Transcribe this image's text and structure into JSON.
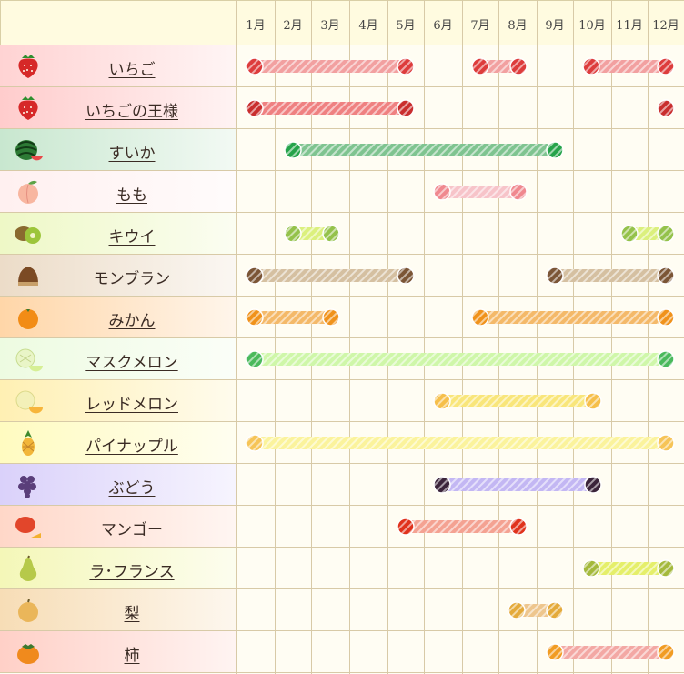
{
  "months": [
    "1月",
    "2月",
    "3月",
    "4月",
    "5月",
    "6月",
    "7月",
    "8月",
    "9月",
    "10月",
    "11月",
    "12月"
  ],
  "rows": [
    {
      "name": "いちご",
      "icon": "strawberry-icon",
      "bg": "#ffd3d3",
      "bar": "#f2a0a0",
      "dot": "#dd3c3c",
      "ranges": [
        [
          1,
          5
        ],
        [
          7,
          8
        ],
        [
          10,
          12
        ]
      ]
    },
    {
      "name": "いちごの王様",
      "icon": "strawberry-icon",
      "bg": "#ffcccc",
      "bar": "#ef8181",
      "dot": "#c92e2e",
      "ranges": [
        [
          1,
          5
        ],
        [
          12,
          12
        ]
      ]
    },
    {
      "name": "すいか",
      "icon": "watermelon-icon",
      "bg": "#c8e7cf",
      "bar": "#7fc490",
      "dot": "#25a34a",
      "ranges": [
        [
          2,
          9
        ]
      ]
    },
    {
      "name": "もも",
      "icon": "peach-icon",
      "bg": "#fff0f0",
      "bar": "#f7c4c9",
      "dot": "#f0888f",
      "ranges": [
        [
          6,
          8
        ]
      ]
    },
    {
      "name": "キウイ",
      "icon": "kiwi-icon",
      "bg": "#eef8c6",
      "bar": "#dbf07d",
      "dot": "#94c24a",
      "ranges": [
        [
          2,
          3
        ],
        [
          11,
          12
        ]
      ]
    },
    {
      "name": "モンブラン",
      "icon": "chestnut-icon",
      "bg": "#ecdcc8",
      "bar": "#d5c0a1",
      "dot": "#7b5536",
      "ranges": [
        [
          1,
          5
        ],
        [
          9,
          12
        ]
      ]
    },
    {
      "name": "みかん",
      "icon": "mandarin-icon",
      "bg": "#ffd6a8",
      "bar": "#f4b969",
      "dot": "#f0921b",
      "ranges": [
        [
          1,
          3
        ],
        [
          7,
          12
        ]
      ]
    },
    {
      "name": "マスクメロン",
      "icon": "muskmelon-icon",
      "bg": "#edfbe1",
      "bar": "#cff7a9",
      "dot": "#4ab95c",
      "ranges": [
        [
          1,
          12
        ]
      ]
    },
    {
      "name": "レッドメロン",
      "icon": "redmelon-icon",
      "bg": "#fff0b3",
      "bar": "#f9e67a",
      "dot": "#f6bf4a",
      "ranges": [
        [
          6,
          10
        ]
      ]
    },
    {
      "name": "パイナップル",
      "icon": "pineapple-icon",
      "bg": "#fffbc0",
      "bar": "#fbf39c",
      "dot": "#f6c457",
      "ranges": [
        [
          1,
          12
        ]
      ]
    },
    {
      "name": "ぶどう",
      "icon": "grape-icon",
      "bg": "#dad1fa",
      "bar": "#c3b7f3",
      "dot": "#3b243a",
      "ranges": [
        [
          6,
          10
        ]
      ]
    },
    {
      "name": "マンゴー",
      "icon": "mango-icon",
      "bg": "#ffd7c8",
      "bar": "#f4a292",
      "dot": "#e0321c",
      "ranges": [
        [
          5,
          8
        ]
      ]
    },
    {
      "name": "ラ･フランス",
      "icon": "pear-icon",
      "bg": "#f4f7b8",
      "bar": "#e5ef6a",
      "dot": "#a4b93c",
      "ranges": [
        [
          10,
          12
        ]
      ]
    },
    {
      "name": "梨",
      "icon": "asianpear-icon",
      "bg": "#f7ddb6",
      "bar": "#eec68d",
      "dot": "#e4aa3b",
      "ranges": [
        [
          8,
          9
        ]
      ]
    },
    {
      "name": "柿",
      "icon": "persimmon-icon",
      "bg": "#ffd0c7",
      "bar": "#f3a8a4",
      "dot": "#f19c23",
      "ranges": [
        [
          9,
          12
        ]
      ]
    }
  ]
}
